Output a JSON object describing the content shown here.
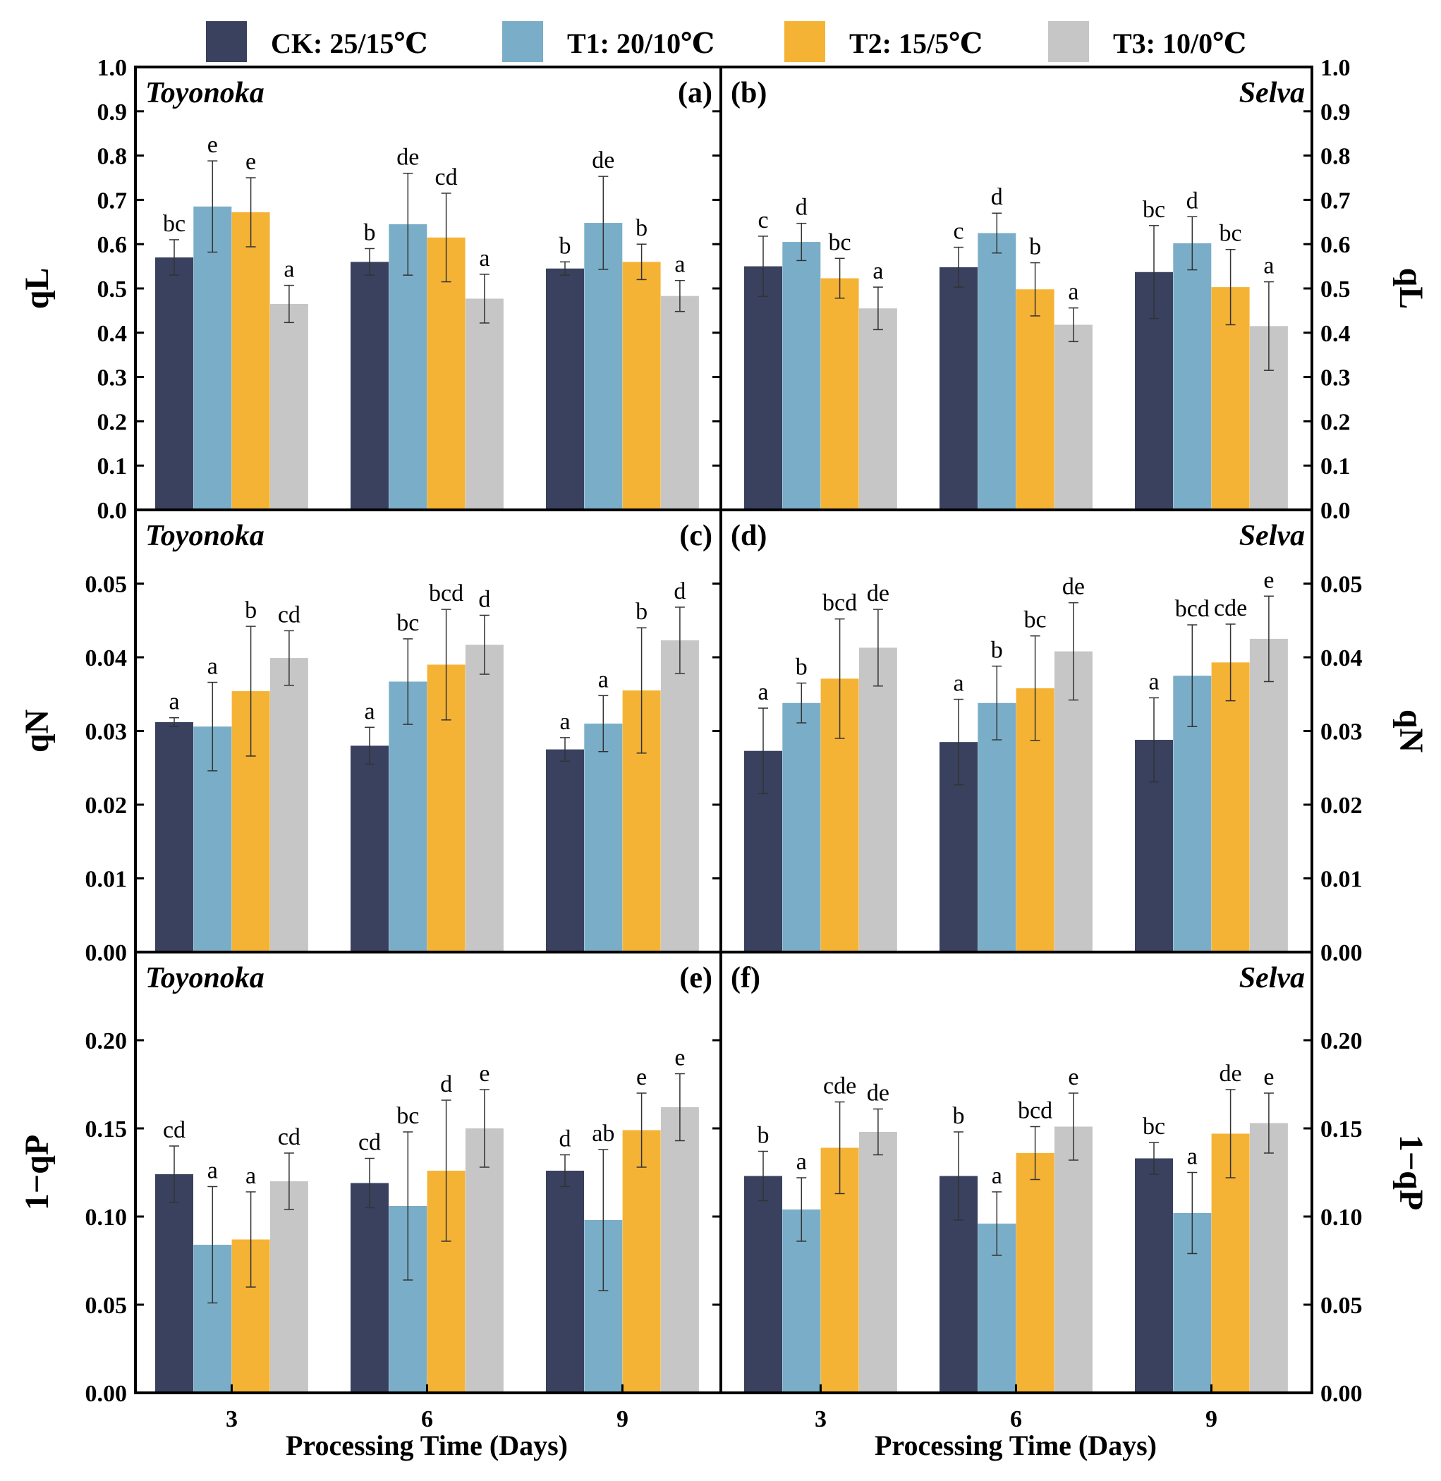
{
  "legend": [
    {
      "key": "CK",
      "label": "CK: 25/15℃",
      "color": "#39415f"
    },
    {
      "key": "T1",
      "label": "T1: 20/10℃",
      "color": "#7aaec8"
    },
    {
      "key": "T2",
      "label": "T2: 15/5℃",
      "color": "#f5b335"
    },
    {
      "key": "T3",
      "label": "T3: 10/0℃",
      "color": "#c6c6c6"
    }
  ],
  "x_title": "Processing Time (Days)",
  "chart_data": [
    {
      "type": "bar",
      "panel": "(a)",
      "cultivar": "Toyonoka",
      "ylabel": "qL",
      "categories": [
        "3",
        "6",
        "9"
      ],
      "ylim": [
        0,
        1.0
      ],
      "yticks": [
        "0.0",
        "0.1",
        "0.2",
        "0.3",
        "0.4",
        "0.5",
        "0.6",
        "0.7",
        "0.8",
        "0.9",
        "1.0"
      ],
      "series": [
        {
          "name": "CK: 25/15℃",
          "values": [
            0.57,
            0.56,
            0.545
          ],
          "errors": [
            0.04,
            0.03,
            0.015
          ],
          "letters": [
            "bc",
            "b",
            "b"
          ]
        },
        {
          "name": "T1: 20/10℃",
          "values": [
            0.685,
            0.645,
            0.648
          ],
          "errors": [
            0.103,
            0.115,
            0.105
          ],
          "letters": [
            "e",
            "de",
            "de"
          ]
        },
        {
          "name": "T2: 15/5℃",
          "values": [
            0.672,
            0.615,
            0.56
          ],
          "errors": [
            0.078,
            0.1,
            0.04
          ],
          "letters": [
            "e",
            "cd",
            "b"
          ]
        },
        {
          "name": "T3: 10/0℃",
          "values": [
            0.465,
            0.477,
            0.483
          ],
          "errors": [
            0.042,
            0.055,
            0.035
          ],
          "letters": [
            "a",
            "a",
            "a"
          ]
        }
      ]
    },
    {
      "type": "bar",
      "panel": "(b)",
      "cultivar": "Selva",
      "ylabel": "qL",
      "categories": [
        "3",
        "6",
        "9"
      ],
      "ylim": [
        0,
        1.0
      ],
      "yticks": [
        "0.0",
        "0.1",
        "0.2",
        "0.3",
        "0.4",
        "0.5",
        "0.6",
        "0.7",
        "0.8",
        "0.9",
        "1.0"
      ],
      "series": [
        {
          "name": "CK: 25/15℃",
          "values": [
            0.55,
            0.548,
            0.537
          ],
          "errors": [
            0.068,
            0.045,
            0.105
          ],
          "letters": [
            "c",
            "c",
            "bc"
          ]
        },
        {
          "name": "T1: 20/10℃",
          "values": [
            0.605,
            0.625,
            0.602
          ],
          "errors": [
            0.042,
            0.045,
            0.06
          ],
          "letters": [
            "d",
            "d",
            "d"
          ]
        },
        {
          "name": "T2: 15/5℃",
          "values": [
            0.523,
            0.498,
            0.503
          ],
          "errors": [
            0.045,
            0.06,
            0.085
          ],
          "letters": [
            "bc",
            "b",
            "bc"
          ]
        },
        {
          "name": "T3: 10/0℃",
          "values": [
            0.455,
            0.418,
            0.415
          ],
          "errors": [
            0.048,
            0.038,
            0.1
          ],
          "letters": [
            "a",
            "a",
            "a"
          ]
        }
      ]
    },
    {
      "type": "bar",
      "panel": "(c)",
      "cultivar": "Toyonoka",
      "ylabel": "qN",
      "categories": [
        "3",
        "6",
        "9"
      ],
      "ylim": [
        0,
        0.06
      ],
      "yticks": [
        "0.00",
        "0.01",
        "0.02",
        "0.03",
        "0.04",
        "0.05"
      ],
      "series": [
        {
          "name": "CK: 25/15℃",
          "values": [
            0.0312,
            0.028,
            0.0275
          ],
          "errors": [
            0.0006,
            0.0025,
            0.0016
          ],
          "letters": [
            "a",
            "a",
            "a"
          ]
        },
        {
          "name": "T1: 20/10℃",
          "values": [
            0.0306,
            0.0367,
            0.031
          ],
          "errors": [
            0.006,
            0.0058,
            0.0038
          ],
          "letters": [
            "a",
            "bc",
            "a"
          ]
        },
        {
          "name": "T2: 15/5℃",
          "values": [
            0.0354,
            0.039,
            0.0355
          ],
          "errors": [
            0.0088,
            0.0075,
            0.0085
          ],
          "letters": [
            "b",
            "bcd",
            "b"
          ]
        },
        {
          "name": "T3: 10/0℃",
          "values": [
            0.0399,
            0.0417,
            0.0423
          ],
          "errors": [
            0.0037,
            0.004,
            0.0045
          ],
          "letters": [
            "cd",
            "d",
            "d"
          ]
        }
      ]
    },
    {
      "type": "bar",
      "panel": "(d)",
      "cultivar": "Selva",
      "ylabel": "qN",
      "categories": [
        "3",
        "6",
        "9"
      ],
      "ylim": [
        0,
        0.06
      ],
      "yticks": [
        "0.00",
        "0.01",
        "0.02",
        "0.03",
        "0.04",
        "0.05"
      ],
      "series": [
        {
          "name": "CK: 25/15℃",
          "values": [
            0.0273,
            0.0285,
            0.0288
          ],
          "errors": [
            0.0058,
            0.0058,
            0.0057
          ],
          "letters": [
            "a",
            "a",
            "a"
          ]
        },
        {
          "name": "T1: 20/10℃",
          "values": [
            0.0338,
            0.0338,
            0.0375
          ],
          "errors": [
            0.0027,
            0.005,
            0.0069
          ],
          "letters": [
            "b",
            "b",
            "bcd"
          ]
        },
        {
          "name": "T2: 15/5℃",
          "values": [
            0.0371,
            0.0358,
            0.0393
          ],
          "errors": [
            0.0081,
            0.0071,
            0.0052
          ],
          "letters": [
            "bcd",
            "bc",
            "cde"
          ]
        },
        {
          "name": "T3: 10/0℃",
          "values": [
            0.0413,
            0.0408,
            0.0425
          ],
          "errors": [
            0.0052,
            0.0066,
            0.0058
          ],
          "letters": [
            "de",
            "de",
            "e"
          ]
        }
      ]
    },
    {
      "type": "bar",
      "panel": "(e)",
      "cultivar": "Toyonoka",
      "ylabel": "1−qP",
      "categories": [
        "3",
        "6",
        "9"
      ],
      "ylim": [
        0,
        0.25
      ],
      "yticks": [
        "0.00",
        "0.05",
        "0.10",
        "0.15",
        "0.20"
      ],
      "series": [
        {
          "name": "CK: 25/15℃",
          "values": [
            0.124,
            0.119,
            0.126
          ],
          "errors": [
            0.016,
            0.014,
            0.009
          ],
          "letters": [
            "cd",
            "cd",
            "d"
          ]
        },
        {
          "name": "T1: 20/10℃",
          "values": [
            0.084,
            0.106,
            0.098
          ],
          "errors": [
            0.033,
            0.042,
            0.04
          ],
          "letters": [
            "a",
            "bc",
            "ab"
          ]
        },
        {
          "name": "T2: 15/5℃",
          "values": [
            0.087,
            0.126,
            0.149
          ],
          "errors": [
            0.027,
            0.04,
            0.021
          ],
          "letters": [
            "a",
            "d",
            "e"
          ]
        },
        {
          "name": "T3: 10/0℃",
          "values": [
            0.12,
            0.15,
            0.162
          ],
          "errors": [
            0.016,
            0.022,
            0.019
          ],
          "letters": [
            "cd",
            "e",
            "e"
          ]
        }
      ]
    },
    {
      "type": "bar",
      "panel": "(f)",
      "cultivar": "Selva",
      "ylabel": "1−qP",
      "categories": [
        "3",
        "6",
        "9"
      ],
      "ylim": [
        0,
        0.25
      ],
      "yticks": [
        "0.00",
        "0.05",
        "0.10",
        "0.15",
        "0.20"
      ],
      "series": [
        {
          "name": "CK: 25/15℃",
          "values": [
            0.123,
            0.123,
            0.133
          ],
          "errors": [
            0.014,
            0.025,
            0.009
          ],
          "letters": [
            "b",
            "b",
            "bc"
          ]
        },
        {
          "name": "T1: 20/10℃",
          "values": [
            0.104,
            0.096,
            0.102
          ],
          "errors": [
            0.018,
            0.018,
            0.023
          ],
          "letters": [
            "a",
            "a",
            "a"
          ]
        },
        {
          "name": "T2: 15/5℃",
          "values": [
            0.139,
            0.136,
            0.147
          ],
          "errors": [
            0.026,
            0.015,
            0.025
          ],
          "letters": [
            "cde",
            "bcd",
            "de"
          ]
        },
        {
          "name": "T3: 10/0℃",
          "values": [
            0.148,
            0.151,
            0.153
          ],
          "errors": [
            0.013,
            0.019,
            0.017
          ],
          "letters": [
            "de",
            "e",
            "e"
          ]
        }
      ]
    }
  ]
}
